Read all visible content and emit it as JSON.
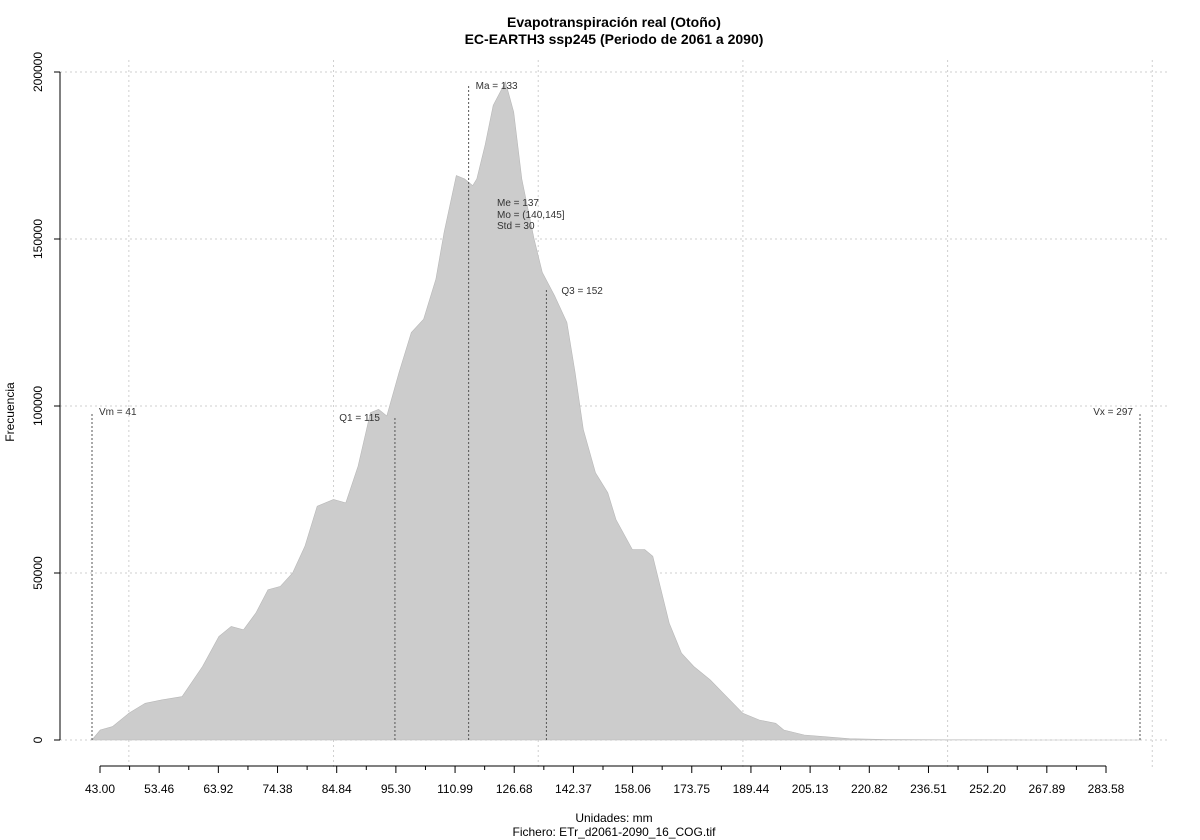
{
  "chart_data": {
    "type": "area",
    "title": "Evapotranspiración real (Otoño)",
    "subtitle": "EC-EARTH3 ssp245 (Periodo de 2061 a 2090)",
    "xlabel": "Unidades: mm",
    "ylabel": "Frecuencia",
    "footer": "Fichero: ETr_d2061-2090_16_COG.tif",
    "xlim": [
      41,
      297
    ],
    "ylim": [
      0,
      200000
    ],
    "x_ticks": [
      "43.00",
      "53.46",
      "63.92",
      "74.38",
      "84.84",
      "95.30",
      "110.99",
      "126.68",
      "142.37",
      "158.06",
      "173.75",
      "189.44",
      "205.13",
      "220.82",
      "236.51",
      "252.20",
      "267.89",
      "283.58"
    ],
    "y_ticks": [
      "0",
      "50000",
      "100000",
      "150000",
      "200000"
    ],
    "grid": true,
    "fill_color": "#cccccc",
    "series": [
      {
        "x": [
          41,
          43,
          46,
          50,
          54,
          58,
          63,
          68,
          72,
          75,
          78,
          81,
          84,
          87,
          90,
          93,
          96,
          100,
          103,
          106,
          109,
          111,
          113,
          116,
          119,
          122,
          125,
          127,
          130,
          132,
          134,
          135,
          137,
          139,
          142,
          144,
          146,
          149,
          151,
          154,
          157,
          159,
          161,
          164,
          167,
          169,
          173,
          176,
          178,
          180,
          182,
          185,
          188,
          192,
          196,
          200,
          204,
          208,
          210,
          215,
          220,
          226,
          235,
          250,
          270,
          290,
          297
        ],
        "y": [
          0,
          3000,
          4000,
          8000,
          11000,
          12000,
          13000,
          22000,
          31000,
          34000,
          33000,
          38000,
          45000,
          46000,
          50000,
          58000,
          70000,
          72000,
          71000,
          82000,
          98000,
          99000,
          97000,
          110000,
          122000,
          126000,
          138000,
          152000,
          169000,
          168000,
          166000,
          168000,
          178000,
          190000,
          197000,
          188000,
          168000,
          150000,
          140000,
          133000,
          125000,
          110000,
          93000,
          80000,
          74000,
          66000,
          57000,
          57000,
          55000,
          45000,
          35000,
          26000,
          22000,
          18000,
          13000,
          8000,
          6000,
          5000,
          3000,
          1500,
          1000,
          400,
          150,
          50,
          10,
          0,
          0
        ]
      }
    ],
    "annotations": [
      {
        "label": "Vm = 41",
        "x": 41,
        "y": 98000
      },
      {
        "label": "Q1 = 115",
        "x": 115,
        "y": 97000
      },
      {
        "label": "Ma = 133",
        "x": 133,
        "y": 196000
      },
      {
        "label": "Me = 137",
        "x": 137,
        "y": null
      },
      {
        "label": "Mo = (140,145]",
        "x": null,
        "y": null
      },
      {
        "label": "Std = 30",
        "x": null,
        "y": null
      },
      {
        "label": "Q3 = 152",
        "x": 152,
        "y": 135000
      },
      {
        "label": "Vx = 297",
        "x": 297,
        "y": 98000
      }
    ]
  }
}
